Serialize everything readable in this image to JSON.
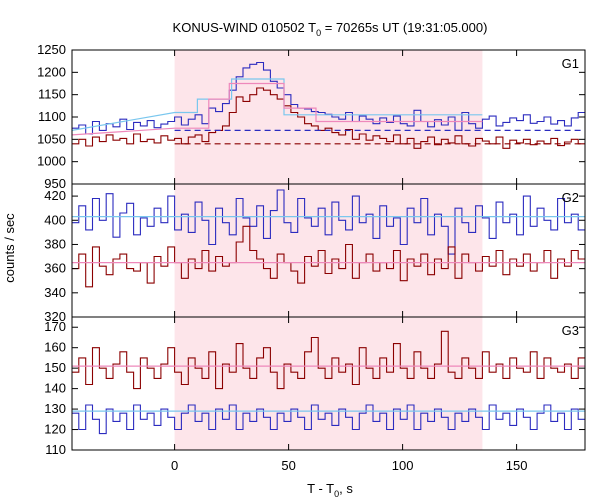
{
  "chart_data": {
    "type": "line",
    "title": "KONUS-WIND 010502 T",
    "title_sub": "0",
    "title_rest": " = 70265s UT (19:31:05.000)",
    "xlabel": "T - T",
    "xlabel_sub": "0",
    "xlabel_rest": ", s",
    "ylabel": "counts / sec",
    "xlim": [
      -45,
      180
    ],
    "xticks": [
      0,
      50,
      100,
      150
    ],
    "xtick_labels": [
      "0",
      "50",
      "100",
      "150"
    ],
    "shaded_interval": [
      0,
      135
    ],
    "colors": {
      "blue": "#2b2bbf",
      "red": "#8b0000",
      "light_blue": "#7ac7ee",
      "pink": "#ee88bb",
      "shade": "#fde5ea"
    },
    "bin_start": -45,
    "bin_width": 3,
    "panels": [
      {
        "name": "G1",
        "ylim": [
          950,
          1250
        ],
        "yticks": [
          950,
          1000,
          1050,
          1100,
          1150,
          1200,
          1250
        ],
        "ytick_labels": [
          "950",
          "1000",
          "1050",
          "1100",
          "1150",
          "1200",
          "1250"
        ],
        "series": [
          {
            "color": "blue",
            "values": [
              1075,
              1082,
              1062,
              1090,
              1070,
              1085,
              1078,
              1095,
              1072,
              1088,
              1080,
              1092,
              1076,
              1084,
              1090,
              1100,
              1082,
              1095,
              1105,
              1085,
              1120,
              1112,
              1130,
              1160,
              1190,
              1210,
              1218,
              1222,
              1205,
              1180,
              1165,
              1150,
              1128,
              1120,
              1118,
              1112,
              1110,
              1106,
              1100,
              1095,
              1110,
              1090,
              1102,
              1095,
              1085,
              1098,
              1088,
              1102,
              1085,
              1080,
              1115,
              1090,
              1078,
              1094,
              1082,
              1100,
              1070,
              1110,
              1085,
              1075,
              1095,
              1102,
              1080,
              1088,
              1098,
              1092,
              1105,
              1086,
              1090,
              1100,
              1084,
              1092,
              1080,
              1098,
              1110
            ]
          },
          {
            "color": "red",
            "values": [
              1040,
              1050,
              1035,
              1055,
              1045,
              1060,
              1048,
              1052,
              1040,
              1062,
              1045,
              1050,
              1042,
              1058,
              1048,
              1052,
              1040,
              1055,
              1060,
              1045,
              1065,
              1070,
              1080,
              1110,
              1145,
              1135,
              1150,
              1165,
              1160,
              1150,
              1140,
              1125,
              1110,
              1100,
              1085,
              1080,
              1070,
              1075,
              1065,
              1060,
              1072,
              1050,
              1062,
              1048,
              1058,
              1052,
              1045,
              1060,
              1040,
              1052,
              1030,
              1045,
              1055,
              1038,
              1050,
              1042,
              1058,
              1040,
              1035,
              1052,
              1046,
              1040,
              1055,
              1030,
              1048,
              1042,
              1050,
              1038,
              1046,
              1040,
              1052,
              1036,
              1044,
              1050,
              1040
            ]
          }
        ],
        "model_steps": [
          {
            "color": "light_blue",
            "steps": [
              [
                -45,
                1070
              ],
              [
                0,
                1110
              ],
              [
                10,
                1110
              ],
              [
                10,
                1140
              ],
              [
                25,
                1140
              ],
              [
                25,
                1185
              ],
              [
                48,
                1185
              ],
              [
                48,
                1105
              ],
              [
                135,
                1105
              ]
            ]
          },
          {
            "color": "pink",
            "steps": [
              [
                -45,
                1060
              ],
              [
                0,
                1075
              ],
              [
                15,
                1075
              ],
              [
                15,
                1140
              ],
              [
                24,
                1140
              ],
              [
                24,
                1175
              ],
              [
                48,
                1175
              ],
              [
                48,
                1120
              ],
              [
                62,
                1120
              ],
              [
                62,
                1090
              ],
              [
                135,
                1090
              ]
            ]
          }
        ],
        "dashed_levels": [
          {
            "color": "blue",
            "y": 1070,
            "from": 0,
            "to": 180
          },
          {
            "color": "red",
            "y": 1040,
            "from": 0,
            "to": 180
          }
        ]
      },
      {
        "name": "G2",
        "ylim": [
          320,
          430
        ],
        "yticks": [
          320,
          340,
          360,
          380,
          400,
          420
        ],
        "ytick_labels": [
          "320",
          "340",
          "360",
          "380",
          "400",
          "420"
        ],
        "series": [
          {
            "color": "blue",
            "values": [
              398,
              412,
              392,
              418,
              400,
              422,
              386,
              406,
              414,
              388,
              402,
              395,
              410,
              398,
              420,
              392,
              405,
              390,
              415,
              400,
              380,
              410,
              398,
              388,
              418,
              402,
              395,
              412,
              385,
              408,
              425,
              398,
              390,
              418,
              402,
              395,
              410,
              388,
              415,
              400,
              392,
              420,
              398,
              405,
              385,
              412,
              395,
              402,
              380,
              410,
              398,
              418,
              388,
              405,
              395,
              372,
              410,
              398,
              390,
              412,
              402,
              385,
              415,
              398,
              405,
              388,
              420,
              395,
              410,
              400,
              392,
              418,
              398,
              405,
              392
            ]
          },
          {
            "color": "red",
            "values": [
              360,
              372,
              345,
              378,
              362,
              355,
              368,
              372,
              360,
              358,
              365,
              348,
              370,
              362,
              378,
              365,
              352,
              368,
              360,
              375,
              358,
              370,
              362,
              365,
              382,
              395,
              375,
              368,
              360,
              352,
              372,
              365,
              358,
              348,
              370,
              362,
              375,
              356,
              368,
              360,
              380,
              352,
              365,
              372,
              358,
              365,
              360,
              375,
              350,
              368,
              362,
              372,
              355,
              368,
              360,
              378,
              352,
              372,
              365,
              358,
              370,
              362,
              375,
              355,
              368,
              362,
              372,
              358,
              365,
              375,
              352,
              368,
              362,
              375,
              368
            ]
          }
        ],
        "flat_levels": [
          {
            "color": "light_blue",
            "y": 403
          },
          {
            "color": "pink",
            "y": 365
          }
        ]
      },
      {
        "name": "G3",
        "ylim": [
          110,
          175
        ],
        "yticks": [
          110,
          120,
          130,
          140,
          150,
          160,
          170
        ],
        "ytick_labels": [
          "110",
          "120",
          "130",
          "140",
          "150",
          "160",
          "170"
        ],
        "series": [
          {
            "color": "red",
            "values": [
              148,
              155,
              142,
              160,
              150,
              145,
              152,
              158,
              148,
              140,
              155,
              150,
              145,
              152,
              160,
              148,
              142,
              155,
              150,
              145,
              158,
              140,
              152,
              148,
              162,
              150,
              145,
              155,
              160,
              148,
              140,
              152,
              148,
              145,
              158,
              165,
              150,
              145,
              155,
              148,
              152,
              142,
              160,
              150,
              145,
              155,
              148,
              162,
              150,
              145,
              158,
              150,
              145,
              152,
              168,
              148,
              145,
              155,
              150,
              145,
              158,
              148,
              152,
              145,
              155,
              150,
              148,
              158,
              145,
              155,
              150,
              148,
              152,
              145,
              155
            ]
          },
          {
            "color": "blue",
            "values": [
              128,
              120,
              132,
              125,
              118,
              130,
              124,
              128,
              120,
              132,
              125,
              128,
              122,
              130,
              126,
              120,
              128,
              132,
              124,
              128,
              120,
              130,
              125,
              132,
              120,
              128,
              124,
              130,
              126,
              120,
              128,
              124,
              130,
              126,
              120,
              132,
              125,
              128,
              122,
              130,
              126,
              120,
              128,
              132,
              124,
              128,
              120,
              130,
              125,
              132,
              120,
              128,
              124,
              130,
              126,
              120,
              128,
              124,
              130,
              126,
              120,
              132,
              125,
              128,
              122,
              130,
              126,
              120,
              128,
              132,
              124,
              128,
              120,
              130,
              125
            ]
          }
        ],
        "flat_levels": [
          {
            "color": "light_blue",
            "y": 129
          },
          {
            "color": "pink",
            "y": 151
          }
        ]
      }
    ]
  }
}
